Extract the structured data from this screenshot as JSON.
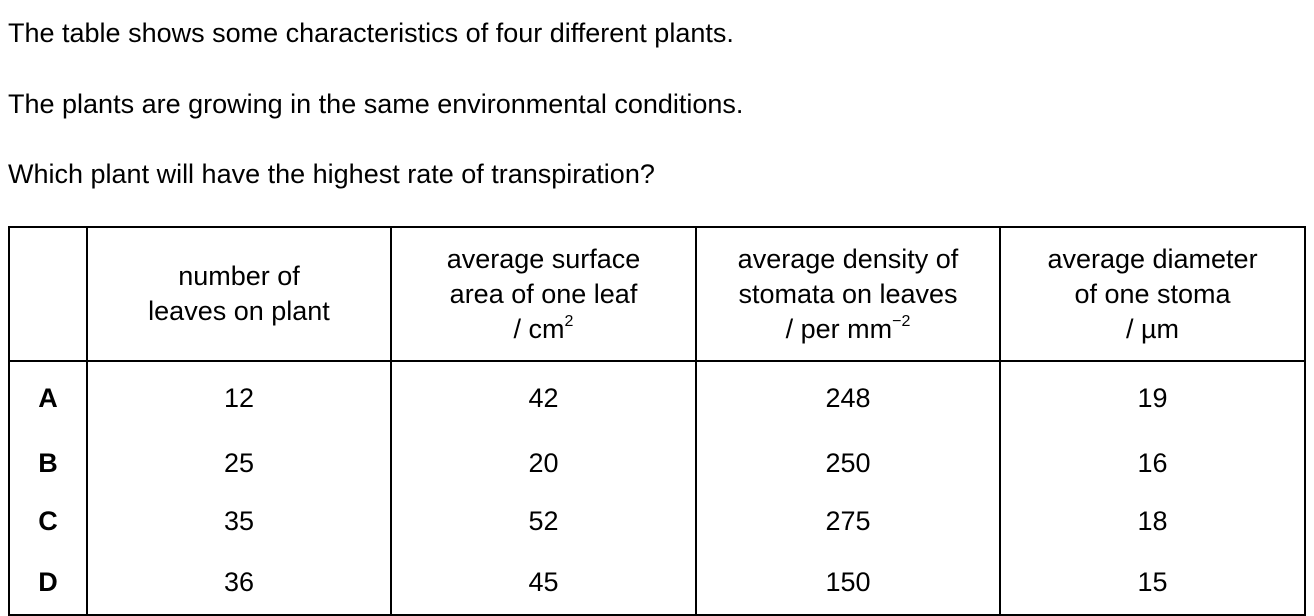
{
  "question": {
    "line1": "The table shows some characteristics of four different plants.",
    "line2": "The plants are growing in the same environmental conditions.",
    "line3": "Which plant will have the highest rate of transpiration?"
  },
  "table": {
    "headers": [
      {
        "lines": [
          "number of",
          "leaves on plant"
        ]
      },
      {
        "lines": [
          "average surface",
          "area of one leaf",
          "/ cm"
        ],
        "sup": "2"
      },
      {
        "lines": [
          "average density of",
          "stomata on leaves",
          "/ per mm"
        ],
        "sup": "−2"
      },
      {
        "lines": [
          "average diameter",
          "of one stoma",
          "/ µm"
        ]
      }
    ],
    "rows": [
      {
        "label": "A",
        "values": [
          "12",
          "42",
          "248",
          "19"
        ]
      },
      {
        "label": "B",
        "values": [
          "25",
          "20",
          "250",
          "16"
        ]
      },
      {
        "label": "C",
        "values": [
          "35",
          "52",
          "275",
          "18"
        ]
      },
      {
        "label": "D",
        "values": [
          "36",
          "45",
          "150",
          "15"
        ]
      }
    ]
  }
}
